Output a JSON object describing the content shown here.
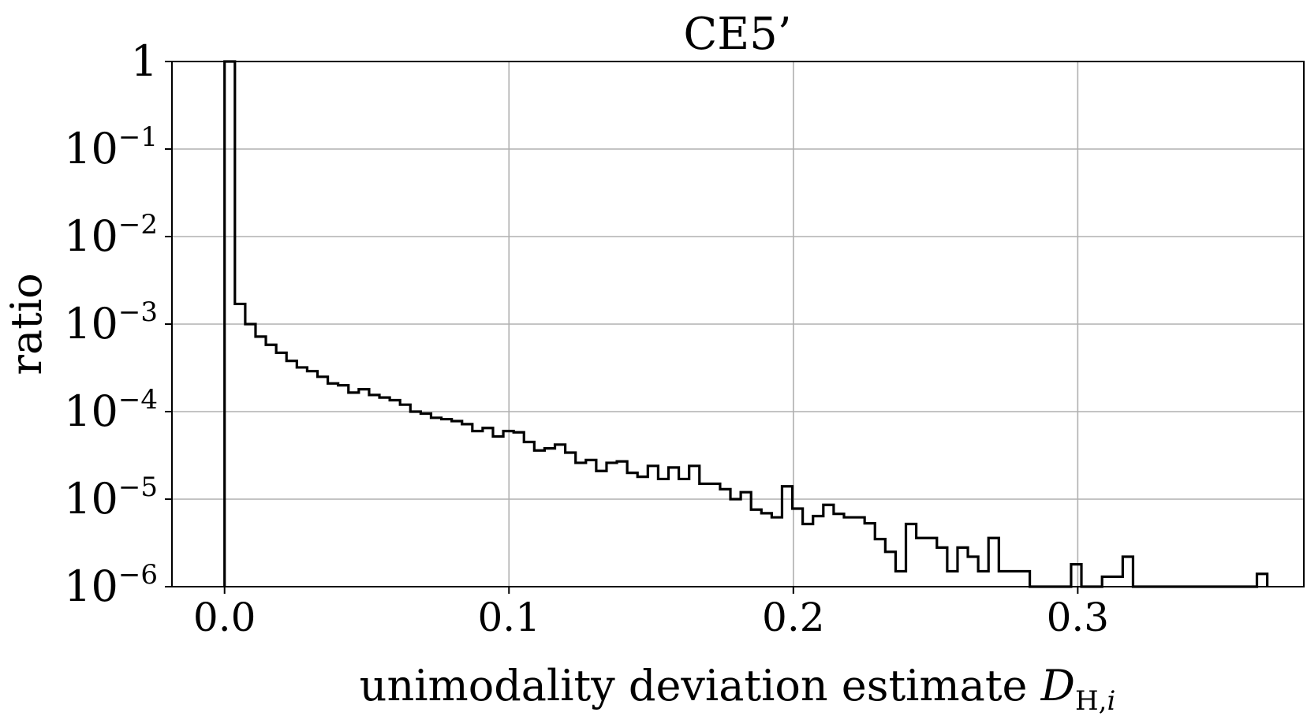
{
  "chart_data": {
    "type": "histogram",
    "title": "CE5’",
    "xlabel": "unimodality deviation estimate ",
    "xlabel_math": {
      "base": "D",
      "sub": "H,",
      "sub_italic": "i"
    },
    "ylabel": "ratio",
    "xscale": "linear",
    "yscale": "log",
    "xlim": [
      -0.0185,
      0.3795
    ],
    "ylim": [
      1e-06,
      1
    ],
    "grid": true,
    "xticks": [
      {
        "value": 0.0,
        "label": "0.0"
      },
      {
        "value": 0.1,
        "label": "0.1"
      },
      {
        "value": 0.2,
        "label": "0.2"
      },
      {
        "value": 0.3,
        "label": "0.3"
      }
    ],
    "yticks": [
      {
        "value": 1,
        "base": "1",
        "exp": ""
      },
      {
        "value": 0.1,
        "base": "10",
        "exp": "−1"
      },
      {
        "value": 0.01,
        "base": "10",
        "exp": "−2"
      },
      {
        "value": 0.001,
        "base": "10",
        "exp": "−3"
      },
      {
        "value": 0.0001,
        "base": "10",
        "exp": "−4"
      },
      {
        "value": 1e-05,
        "base": "10",
        "exp": "−5"
      },
      {
        "value": 1e-06,
        "base": "10",
        "exp": "−6"
      }
    ],
    "bin_start": 0.0,
    "bin_width": 0.00363,
    "values": [
      1,
      0.0017,
      0.001,
      0.00072,
      0.00058,
      0.00047,
      0.00038,
      0.00032,
      0.00029,
      0.00025,
      0.00021,
      0.0002,
      0.000165,
      0.00018,
      0.000155,
      0.000145,
      0.000135,
      0.00012,
      0.0001,
      9.5e-05,
      8.5e-05,
      8.2e-05,
      7.8e-05,
      7.2e-05,
      6e-05,
      6.5e-05,
      5.2e-05,
      6e-05,
      5.8e-05,
      4.5e-05,
      3.6e-05,
      3.8e-05,
      4.2e-05,
      3.4e-05,
      2.6e-05,
      2.8e-05,
      2.1e-05,
      2.6e-05,
      2.7e-05,
      2e-05,
      1.8e-05,
      2.4e-05,
      1.7e-05,
      2.3e-05,
      1.7e-05,
      2.4e-05,
      1.5e-05,
      1.5e-05,
      1.3e-05,
      1e-05,
      1.2e-05,
      7.6e-06,
      6.9e-06,
      6.2e-06,
      1.4e-05,
      7.8e-06,
      5.2e-06,
      6.4e-06,
      8.6e-06,
      6.8e-06,
      6.2e-06,
      6.2e-06,
      5.3e-06,
      3.5e-06,
      2.5e-06,
      1.5e-06,
      5.2e-06,
      3.6e-06,
      3.6e-06,
      2.8e-06,
      1.5e-06,
      2.8e-06,
      2.2e-06,
      1.5e-06,
      3.6e-06,
      1.5e-06,
      1.5e-06,
      1.5e-06,
      0,
      0,
      0,
      0,
      1.8e-06,
      0,
      0,
      1.3e-06,
      1.3e-06,
      2.2e-06,
      0,
      0,
      0,
      0,
      0,
      0,
      0,
      0,
      0,
      0,
      0,
      0,
      1.4e-06
    ]
  }
}
